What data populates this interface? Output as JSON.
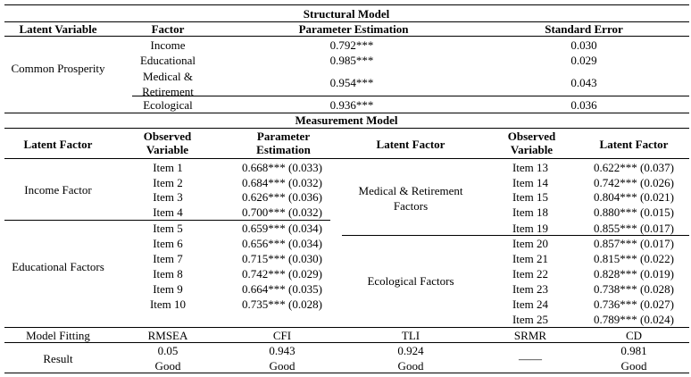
{
  "structural": {
    "caption": "Structural Model",
    "headers": [
      "Latent Variable",
      "Factor",
      "Parameter Estimation",
      "Standard Error"
    ],
    "latent": "Common Prosperity",
    "rows": [
      {
        "factor": "Income",
        "estimate": "0.792***",
        "se": "0.030"
      },
      {
        "factor": "Educational",
        "estimate": "0.985***",
        "se": "0.029"
      },
      {
        "factor": "Medical & Retirement",
        "estimate": "0.954***",
        "se": "0.043"
      },
      {
        "factor": "Ecological",
        "estimate": "0.936***",
        "se": "0.036"
      }
    ]
  },
  "measurement": {
    "caption": "Measurement Model",
    "headers": [
      "Latent Factor",
      "Observed Variable",
      "Parameter Estimation",
      "Latent Factor",
      "Observed Variable",
      "Latent Factor"
    ],
    "left_groups": [
      {
        "factor": "Income Factor",
        "items": [
          {
            "item": "Item 1",
            "value": "0.668*** (0.033)"
          },
          {
            "item": "Item 2",
            "value": "0.684*** (0.032)"
          },
          {
            "item": "Item 3",
            "value": "0.626*** (0.036)"
          },
          {
            "item": "Item 4",
            "value": "0.700*** (0.032)"
          }
        ]
      },
      {
        "factor": "Educational Factors",
        "items": [
          {
            "item": "Item 5",
            "value": "0.659*** (0.034)"
          },
          {
            "item": "Item 6",
            "value": "0.656*** (0.034)"
          },
          {
            "item": "Item 7",
            "value": "0.715*** (0.030)"
          },
          {
            "item": "Item 8",
            "value": "0.742*** (0.029)"
          },
          {
            "item": "Item 9",
            "value": "0.664*** (0.035)"
          },
          {
            "item": "Item 10",
            "value": "0.735*** (0.028)"
          }
        ]
      }
    ],
    "right_groups": [
      {
        "factor": "Medical & Retirement Factors",
        "items": [
          {
            "item": "Item 13",
            "value": "0.622*** (0.037)"
          },
          {
            "item": "Item 14",
            "value": "0.742*** (0.026)"
          },
          {
            "item": "Item 15",
            "value": "0.804*** (0.021)"
          },
          {
            "item": "Item 18",
            "value": "0.880*** (0.015)"
          },
          {
            "item": "Item 19",
            "value": "0.855*** (0.017)"
          }
        ]
      },
      {
        "factor": "Ecological Factors",
        "items": [
          {
            "item": "Item 20",
            "value": "0.857*** (0.017)"
          },
          {
            "item": "Item 21",
            "value": "0.815*** (0.022)"
          },
          {
            "item": "Item 22",
            "value": "0.828*** (0.019)"
          },
          {
            "item": "Item 23",
            "value": "0.738*** (0.028)"
          },
          {
            "item": "Item 24",
            "value": "0.736*** (0.027)"
          },
          {
            "item": "Item 25",
            "value": "0.789*** (0.024)"
          }
        ]
      }
    ]
  },
  "fitting": {
    "label": "Model Fitting",
    "result_label": "Result",
    "metrics": [
      {
        "name": "RMSEA",
        "value": "0.05",
        "verdict": "Good"
      },
      {
        "name": "CFI",
        "value": "0.943",
        "verdict": "Good"
      },
      {
        "name": "TLI",
        "value": "0.924",
        "verdict": "Good"
      },
      {
        "name": "SRMR",
        "value": "——",
        "verdict": ""
      },
      {
        "name": "CD",
        "value": "0.981",
        "verdict": "Good"
      }
    ]
  }
}
